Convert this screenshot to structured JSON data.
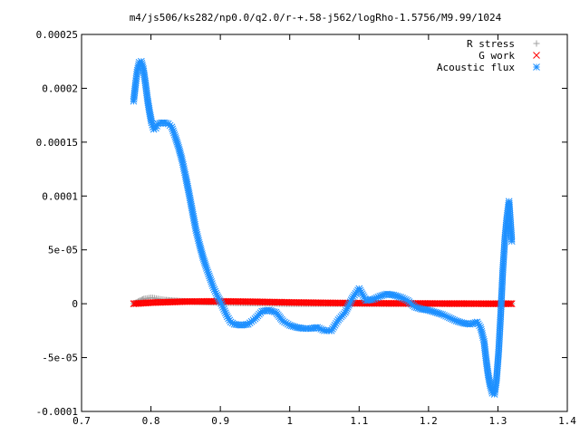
{
  "chart_data": {
    "type": "scatter",
    "title": "m4/js506/ks282/np0.0/q2.0/r-+.58-j562/logRho-1.5756/M9.99/1024",
    "xlabel": "",
    "ylabel": "",
    "xlim": [
      0.7,
      1.4
    ],
    "ylim": [
      -0.0001,
      0.00025
    ],
    "xticks": [
      "0.7",
      "0.8",
      "0.9",
      "1",
      "1.1",
      "1.2",
      "1.3",
      "1.4"
    ],
    "yticks": [
      "-0.0001",
      "-5e-05",
      "0",
      "5e-05",
      "0.0001",
      "0.00015",
      "0.0002",
      "0.00025"
    ],
    "grid": false,
    "legend_position": "top-right",
    "series": [
      {
        "name": "R stress",
        "marker": "+",
        "color": "#a0a0a0",
        "x": [
          0.775,
          0.78,
          0.785,
          0.79,
          0.795,
          0.8,
          0.805,
          0.81,
          0.815,
          0.82,
          0.83,
          0.84,
          0.86,
          0.88,
          0.9,
          0.95,
          1.0,
          1.05,
          1.1,
          1.15,
          1.2,
          1.25,
          1.3,
          1.32
        ],
        "y": [
          0.0,
          1.5e-06,
          3e-06,
          4.5e-06,
          5e-06,
          5.5e-06,
          5.2e-06,
          4.5e-06,
          4e-06,
          3.5e-06,
          3e-06,
          2.5e-06,
          2e-06,
          1.5e-06,
          1e-06,
          5e-07,
          0.0,
          0.0,
          0.0,
          0.0,
          0.0,
          0.0,
          0.0,
          0.0
        ]
      },
      {
        "name": "G work",
        "marker": "x",
        "color": "#ff0000",
        "x": [
          0.775,
          0.8,
          0.85,
          0.9,
          0.95,
          1.0,
          1.05,
          1.1,
          1.15,
          1.2,
          1.25,
          1.3,
          1.32
        ],
        "y": [
          0.0,
          1e-06,
          2e-06,
          2.2e-06,
          1.8e-06,
          1.2e-06,
          8e-07,
          5e-07,
          3e-07,
          2e-07,
          1e-07,
          0.0,
          0.0
        ]
      },
      {
        "name": "Acoustic flux",
        "marker": "*",
        "color": "#1e90ff",
        "x": [
          0.775,
          0.778,
          0.78,
          0.783,
          0.786,
          0.789,
          0.792,
          0.795,
          0.798,
          0.801,
          0.804,
          0.807,
          0.81,
          0.815,
          0.82,
          0.825,
          0.83,
          0.835,
          0.84,
          0.845,
          0.85,
          0.855,
          0.86,
          0.865,
          0.87,
          0.875,
          0.88,
          0.885,
          0.89,
          0.895,
          0.9,
          0.905,
          0.91,
          0.915,
          0.92,
          0.93,
          0.94,
          0.95,
          0.96,
          0.97,
          0.98,
          0.99,
          1.0,
          1.01,
          1.02,
          1.03,
          1.04,
          1.05,
          1.06,
          1.07,
          1.08,
          1.09,
          1.1,
          1.11,
          1.12,
          1.13,
          1.14,
          1.15,
          1.16,
          1.17,
          1.18,
          1.19,
          1.2,
          1.21,
          1.22,
          1.23,
          1.24,
          1.25,
          1.26,
          1.27,
          1.275,
          1.28,
          1.283,
          1.286,
          1.289,
          1.292,
          1.295,
          1.298,
          1.301,
          1.304,
          1.307,
          1.31,
          1.313,
          1.316,
          1.32
        ],
        "y": [
          0.000188,
          0.000205,
          0.000215,
          0.000224,
          0.000225,
          0.000218,
          0.000205,
          0.00019,
          0.000178,
          0.000168,
          0.000162,
          0.000163,
          0.000167,
          0.000168,
          0.000168,
          0.000167,
          0.000164,
          0.000155,
          0.000145,
          0.000133,
          0.000118,
          0.000102,
          8.5e-05,
          6.8e-05,
          5.5e-05,
          4.3e-05,
          3.3e-05,
          2.4e-05,
          1.5e-05,
          8e-06,
          2e-06,
          -5e-06,
          -1.2e-05,
          -1.7e-05,
          -1.9e-05,
          -2e-05,
          -1.9e-05,
          -1.4e-05,
          -7e-06,
          -6e-06,
          -8e-06,
          -1.6e-05,
          -2e-05,
          -2.2e-05,
          -2.3e-05,
          -2.3e-05,
          -2.2e-05,
          -2.5e-05,
          -2.5e-05,
          -1.5e-05,
          -8e-06,
          5e-06,
          1.4e-05,
          3e-06,
          4e-06,
          7e-06,
          9e-06,
          8e-06,
          6e-06,
          3e-06,
          -3e-06,
          -5e-06,
          -6e-06,
          -8e-06,
          -1e-05,
          -1.3e-05,
          -1.6e-05,
          -1.8e-05,
          -1.9e-05,
          -1.7e-05,
          -2.2e-05,
          -3.5e-05,
          -5.2e-05,
          -6.6e-05,
          -7.6e-05,
          -8.3e-05,
          -8.4e-05,
          -7e-05,
          -4.5e-05,
          -1e-05,
          3e-05,
          6e-05,
          8e-05,
          9.5e-05,
          5.8e-05
        ]
      }
    ]
  }
}
